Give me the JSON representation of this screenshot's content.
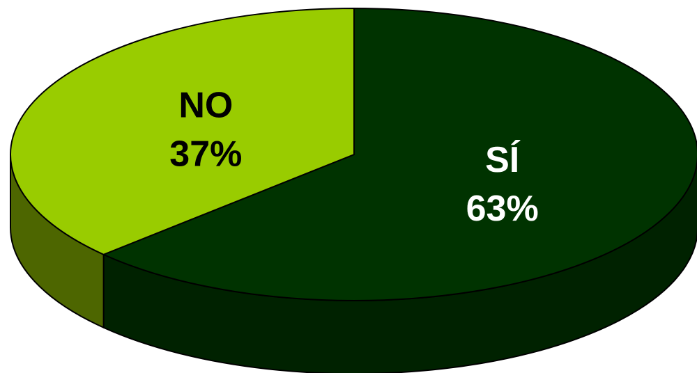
{
  "chart_data": {
    "type": "pie",
    "style": "3d",
    "title": "",
    "slices": [
      {
        "label": "SÍ",
        "value": 63,
        "value_label": "63%",
        "color": "#003300",
        "side_color": "#002200",
        "text_color": "#ffffff"
      },
      {
        "label": "NO",
        "value": 37,
        "value_label": "37%",
        "color": "#99cc00",
        "side_color": "#4d6600",
        "text_color": "#000000"
      }
    ],
    "start_angle_deg": 0,
    "direction": "clockwise"
  }
}
